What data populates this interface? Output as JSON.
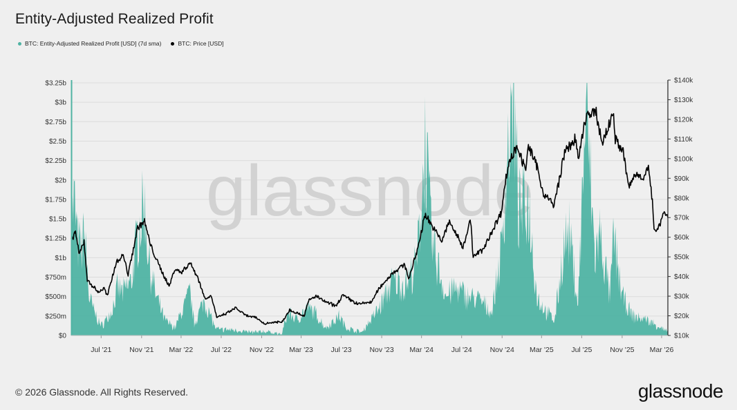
{
  "title": "Entity-Adjusted Realized Profit",
  "footer": "© 2026 Glassnode. All Rights Reserved.",
  "brand": "glassnode",
  "watermark": "glassnode",
  "colors": {
    "profit": "#4fb3a3",
    "price": "#000000",
    "grid": "#dcdcdc",
    "watermark": "#d2d2d2"
  },
  "chart_data": {
    "type": "area",
    "title": "Entity-Adjusted Realized Profit",
    "x_ticks": [
      "Jul '21",
      "Nov '21",
      "Mar '22",
      "Jul '22",
      "Nov '22",
      "Mar '23",
      "Jul '23",
      "Nov '23",
      "Mar '24",
      "Jul '24",
      "Nov '24",
      "Mar '25",
      "Jul '25",
      "Nov '25",
      "Mar '26"
    ],
    "x_range": [
      "2021-04-01",
      "2026-03-20"
    ],
    "left_axis": {
      "ticks": [
        "$0",
        "$250m",
        "$500m",
        "$750m",
        "$1b",
        "$1.25b",
        "$1.5b",
        "$1.75b",
        "$2b",
        "$2.25b",
        "$2.5b",
        "$2.75b",
        "$3b",
        "$3.25b"
      ],
      "ylim_usd_millions": [
        0,
        3250
      ]
    },
    "right_axis": {
      "ticks": [
        "$10k",
        "$20k",
        "$30k",
        "$40k",
        "$50k",
        "$60k",
        "$70k",
        "$80k",
        "$90k",
        "$100k",
        "$110k",
        "$120k",
        "$130k",
        "$140k"
      ],
      "ylim_usd_thousands": [
        10,
        140
      ]
    },
    "series": [
      {
        "name": "BTC: Entity-Adjusted Realized Profit [USD] (7d sma)",
        "axis": "left",
        "style": "area",
        "unit": "USD millions",
        "points": [
          [
            "2021-04-01",
            1400
          ],
          [
            "2021-04-10",
            1750
          ],
          [
            "2021-04-20",
            1200
          ],
          [
            "2021-05-01",
            1100
          ],
          [
            "2021-05-12",
            1300
          ],
          [
            "2021-05-25",
            500
          ],
          [
            "2021-06-10",
            300
          ],
          [
            "2021-07-01",
            120
          ],
          [
            "2021-08-01",
            300
          ],
          [
            "2021-08-20",
            600
          ],
          [
            "2021-09-07",
            550
          ],
          [
            "2021-10-01",
            700
          ],
          [
            "2021-10-20",
            1300
          ],
          [
            "2021-11-09",
            1700
          ],
          [
            "2021-11-25",
            900
          ],
          [
            "2021-12-15",
            500
          ],
          [
            "2022-01-10",
            200
          ],
          [
            "2022-02-10",
            100
          ],
          [
            "2022-03-28",
            550
          ],
          [
            "2022-04-10",
            150
          ],
          [
            "2022-05-10",
            450
          ],
          [
            "2022-06-15",
            80
          ],
          [
            "2022-08-10",
            70
          ],
          [
            "2022-10-01",
            40
          ],
          [
            "2022-11-08",
            50
          ],
          [
            "2023-01-01",
            20
          ],
          [
            "2023-01-20",
            300
          ],
          [
            "2023-02-15",
            200
          ],
          [
            "2023-03-20",
            350
          ],
          [
            "2023-04-10",
            300
          ],
          [
            "2023-05-15",
            100
          ],
          [
            "2023-06-25",
            250
          ],
          [
            "2023-07-15",
            100
          ],
          [
            "2023-09-01",
            40
          ],
          [
            "2023-10-24",
            350
          ],
          [
            "2023-12-05",
            700
          ],
          [
            "2024-01-10",
            650
          ],
          [
            "2024-02-15",
            900
          ],
          [
            "2024-03-05",
            2000
          ],
          [
            "2024-03-12",
            2500
          ],
          [
            "2024-04-01",
            1200
          ],
          [
            "2024-05-15",
            500
          ],
          [
            "2024-06-10",
            600
          ],
          [
            "2024-07-20",
            500
          ],
          [
            "2024-08-25",
            450
          ],
          [
            "2024-10-01",
            300
          ],
          [
            "2024-10-30",
            1100
          ],
          [
            "2024-11-15",
            2200
          ],
          [
            "2024-12-05",
            3100
          ],
          [
            "2024-12-20",
            1600
          ],
          [
            "2025-01-20",
            1700
          ],
          [
            "2025-02-15",
            500
          ],
          [
            "2025-03-15",
            300
          ],
          [
            "2025-04-10",
            200
          ],
          [
            "2025-05-10",
            1200
          ],
          [
            "2025-05-25",
            1300
          ],
          [
            "2025-06-20",
            400
          ],
          [
            "2025-07-14",
            3000
          ],
          [
            "2025-08-10",
            1000
          ],
          [
            "2025-08-25",
            1300
          ],
          [
            "2025-09-25",
            500
          ],
          [
            "2025-10-06",
            1250
          ],
          [
            "2025-11-01",
            500
          ],
          [
            "2025-12-01",
            250
          ],
          [
            "2026-01-15",
            200
          ],
          [
            "2026-02-05",
            150
          ],
          [
            "2026-03-20",
            50
          ]
        ]
      },
      {
        "name": "BTC: Price [USD]",
        "axis": "right",
        "style": "line",
        "unit": "USD thousands",
        "points": [
          [
            "2021-04-01",
            58
          ],
          [
            "2021-04-14",
            63
          ],
          [
            "2021-04-25",
            51
          ],
          [
            "2021-05-10",
            58
          ],
          [
            "2021-05-20",
            38
          ],
          [
            "2021-06-01",
            36
          ],
          [
            "2021-06-22",
            32
          ],
          [
            "2021-07-10",
            34
          ],
          [
            "2021-07-20",
            30
          ],
          [
            "2021-08-15",
            47
          ],
          [
            "2021-09-06",
            51
          ],
          [
            "2021-09-21",
            41
          ],
          [
            "2021-10-20",
            65
          ],
          [
            "2021-11-10",
            68
          ],
          [
            "2021-11-28",
            56
          ],
          [
            "2021-12-20",
            47
          ],
          [
            "2022-01-24",
            35
          ],
          [
            "2022-02-10",
            44
          ],
          [
            "2022-03-01",
            42
          ],
          [
            "2022-03-28",
            47
          ],
          [
            "2022-04-20",
            40
          ],
          [
            "2022-05-12",
            29
          ],
          [
            "2022-06-01",
            30
          ],
          [
            "2022-06-18",
            19
          ],
          [
            "2022-07-15",
            21
          ],
          [
            "2022-08-14",
            24
          ],
          [
            "2022-09-15",
            20
          ],
          [
            "2022-10-15",
            19
          ],
          [
            "2022-11-09",
            16
          ],
          [
            "2022-12-20",
            17
          ],
          [
            "2023-01-01",
            16.6
          ],
          [
            "2023-01-25",
            23
          ],
          [
            "2023-03-10",
            20
          ],
          [
            "2023-03-25",
            28
          ],
          [
            "2023-04-15",
            30
          ],
          [
            "2023-05-15",
            27
          ],
          [
            "2023-06-15",
            25
          ],
          [
            "2023-07-05",
            30.5
          ],
          [
            "2023-08-20",
            26
          ],
          [
            "2023-10-01",
            27
          ],
          [
            "2023-10-24",
            34
          ],
          [
            "2023-12-05",
            42
          ],
          [
            "2024-01-10",
            46
          ],
          [
            "2024-01-23",
            39
          ],
          [
            "2024-02-15",
            52
          ],
          [
            "2024-03-13",
            72
          ],
          [
            "2024-04-01",
            66
          ],
          [
            "2024-05-01",
            58
          ],
          [
            "2024-05-25",
            68
          ],
          [
            "2024-07-05",
            55
          ],
          [
            "2024-07-28",
            69
          ],
          [
            "2024-08-05",
            50
          ],
          [
            "2024-09-06",
            54
          ],
          [
            "2024-10-01",
            63
          ],
          [
            "2024-10-28",
            72
          ],
          [
            "2024-11-13",
            90
          ],
          [
            "2024-11-22",
            98
          ],
          [
            "2024-12-17",
            107
          ],
          [
            "2025-01-10",
            94
          ],
          [
            "2025-01-21",
            106
          ],
          [
            "2025-02-15",
            96
          ],
          [
            "2025-03-05",
            83
          ],
          [
            "2025-04-08",
            76
          ],
          [
            "2025-05-10",
            103
          ],
          [
            "2025-06-10",
            110
          ],
          [
            "2025-06-22",
            100
          ],
          [
            "2025-07-14",
            122
          ],
          [
            "2025-08-14",
            123
          ],
          [
            "2025-09-01",
            108
          ],
          [
            "2025-09-20",
            116
          ],
          [
            "2025-10-06",
            124
          ],
          [
            "2025-10-11",
            110
          ],
          [
            "2025-11-05",
            103
          ],
          [
            "2025-11-21",
            85
          ],
          [
            "2025-12-10",
            92
          ],
          [
            "2026-01-05",
            91
          ],
          [
            "2026-01-20",
            95
          ],
          [
            "2026-02-01",
            78
          ],
          [
            "2026-02-06",
            63
          ],
          [
            "2026-02-25",
            67
          ],
          [
            "2026-03-05",
            73
          ],
          [
            "2026-03-20",
            70
          ]
        ]
      }
    ],
    "legend": "top-left",
    "grid": true
  }
}
